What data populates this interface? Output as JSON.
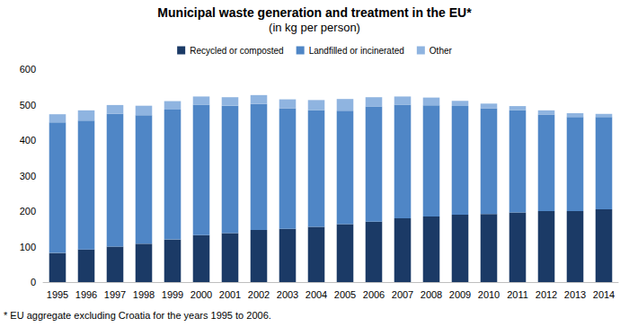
{
  "chart_data": {
    "type": "bar",
    "title": "Municipal waste generation and treatment in the EU*",
    "subtitle": "(in kg per person)",
    "annotation": "* EU aggregate excluding Croatia for the years 1995 to 2006.",
    "categories": [
      "1995",
      "1996",
      "1997",
      "1998",
      "1999",
      "2000",
      "2001",
      "2002",
      "2003",
      "2004",
      "2005",
      "2006",
      "2007",
      "2008",
      "2009",
      "2010",
      "2011",
      "2012",
      "2013",
      "2014"
    ],
    "series": [
      {
        "name": "Recycled or composted",
        "color": "#1b3a66",
        "values": [
          82,
          92,
          100,
          108,
          120,
          132,
          138,
          147,
          150,
          156,
          163,
          170,
          180,
          185,
          190,
          192,
          196,
          200,
          200,
          205
        ]
      },
      {
        "name": "Landfilled or incinerated",
        "color": "#4f86c6",
        "values": [
          368,
          363,
          374,
          362,
          366,
          368,
          359,
          355,
          340,
          329,
          320,
          324,
          320,
          313,
          306,
          298,
          289,
          272,
          265,
          260
        ]
      },
      {
        "name": "Other",
        "color": "#8fb4e0",
        "values": [
          23,
          29,
          25,
          27,
          24,
          23,
          24,
          25,
          25,
          28,
          33,
          27,
          23,
          22,
          15,
          13,
          11,
          12,
          11,
          9
        ]
      }
    ],
    "stacked": true,
    "ylim": [
      0,
      600
    ],
    "yticks": [
      0,
      100,
      200,
      300,
      400,
      500,
      600
    ],
    "grid": false,
    "legend": "top"
  }
}
